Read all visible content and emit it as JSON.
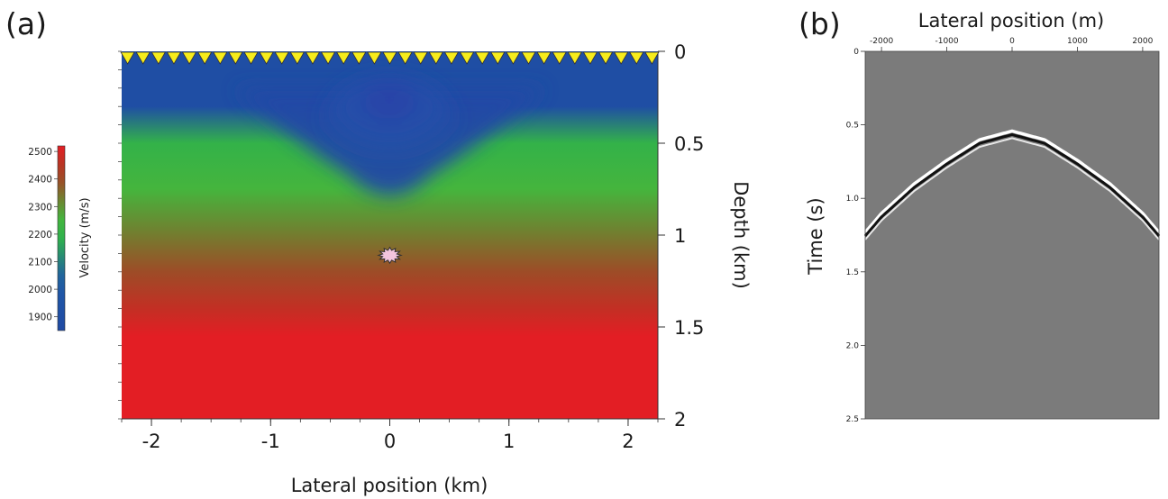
{
  "panel_labels": {
    "a": "(a)",
    "b": "(b)"
  },
  "colors": {
    "low_velocity": "#1f4aa3",
    "mid_velocity": "#3cbf4a",
    "high_velocity": "#e31e24",
    "receiver": "#f7ec1b",
    "source": "#f2c4dd",
    "seismic_background": "#7b7b7b",
    "wavelet_light": "#ffffff",
    "wavelet_dark": "#111111"
  },
  "chart_data": [
    {
      "type": "heatmap",
      "panel": "(a)",
      "xlabel": "Lateral position (km)",
      "ylabel": "Depth (km)",
      "xlim": [
        -2.25,
        2.25
      ],
      "ylim": [
        0,
        2
      ],
      "x_ticks": [
        "-2",
        "-1",
        "0",
        "1",
        "2"
      ],
      "y_ticks": [
        "0",
        "0.5",
        "1",
        "1.5",
        "2"
      ],
      "colorbar": {
        "label": "Velocity (m/s)",
        "range": [
          1850,
          2520
        ],
        "ticks": [
          "1900",
          "2000",
          "2100",
          "2200",
          "2300",
          "2400",
          "2500"
        ]
      },
      "velocity_profile": [
        {
          "depth": 0.0,
          "velocity": 1900
        },
        {
          "depth": 0.3,
          "velocity": 1900
        },
        {
          "depth": 0.5,
          "velocity": 2200
        },
        {
          "depth": 0.75,
          "velocity": 2260
        },
        {
          "depth": 1.0,
          "velocity": 2330
        },
        {
          "depth": 1.2,
          "velocity": 2400
        },
        {
          "depth": 1.4,
          "velocity": 2470
        },
        {
          "depth": 1.55,
          "velocity": 2520
        },
        {
          "depth": 2.0,
          "velocity": 2520
        }
      ],
      "low_velocity_anomaly": {
        "center_x": 0.0,
        "max_depth": 0.85,
        "width": 1.0
      },
      "receivers": {
        "count": 35,
        "x_start": -2.2,
        "x_end": 2.2,
        "depth": 0
      },
      "source": {
        "x": 0.0,
        "depth": 1.11
      }
    },
    {
      "type": "line",
      "panel": "(b)",
      "xlabel": "Lateral position (m)",
      "ylabel": "Time (s)",
      "xlim": [
        -2250,
        2250
      ],
      "ylim": [
        0,
        2.5
      ],
      "x_ticks": [
        "-2000",
        "-1000",
        "0",
        "1000",
        "2000"
      ],
      "y_ticks": [
        "0",
        "0.5",
        "1.0",
        "1.5",
        "2.0",
        "2.5"
      ],
      "series": [
        {
          "x": [
            -2250,
            -2000,
            -1500,
            -1000,
            -500,
            0,
            500,
            1000,
            1500,
            2000,
            2250
          ],
          "y": [
            1.25,
            1.12,
            0.92,
            0.76,
            0.62,
            0.56,
            0.62,
            0.76,
            0.92,
            1.12,
            1.25
          ]
        }
      ]
    }
  ]
}
